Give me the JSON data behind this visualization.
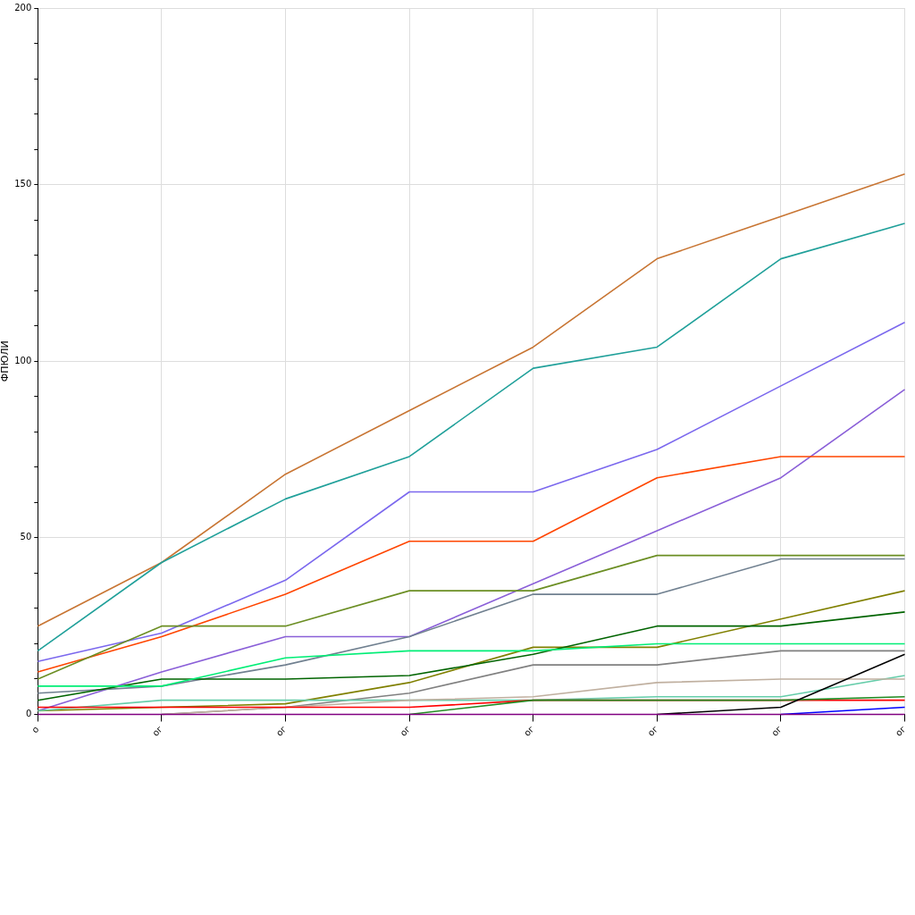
{
  "chart_data": {
    "type": "line",
    "ylabel": "ФПЮЛИ",
    "categories": [
      "о",
      "ог",
      "ог",
      "ог",
      "ог",
      "ог",
      "ог",
      "ог"
    ],
    "ylim": [
      0,
      200
    ],
    "yticks": [
      0,
      {
        "value": 10,
        "label": null
      },
      {
        "value": 20,
        "label": null
      },
      {
        "value": 30,
        "label": null
      },
      {
        "value": 40,
        "label": null
      },
      50,
      {
        "value": 60,
        "label": null
      },
      {
        "value": 70,
        "label": null
      },
      {
        "value": 80,
        "label": null
      },
      {
        "value": 90,
        "label": null
      },
      100,
      {
        "value": 110,
        "label": null
      },
      {
        "value": 120,
        "label": null
      },
      {
        "value": 130,
        "label": null
      },
      {
        "value": 140,
        "label": null
      },
      150,
      {
        "value": 160,
        "label": null
      },
      {
        "value": 170,
        "label": null
      },
      {
        "value": 180,
        "label": null
      },
      {
        "value": 190,
        "label": null
      },
      200
    ],
    "grid": true,
    "marker": "none",
    "line_style": "solid",
    "series": [
      {
        "color": "#c87533",
        "values": [
          25,
          43,
          68,
          86,
          104,
          129,
          141,
          153
        ]
      },
      {
        "color": "#20a09a",
        "values": [
          18,
          43,
          61,
          73,
          98,
          104,
          129,
          139
        ]
      },
      {
        "color": "#7b68ee",
        "values": [
          15,
          23,
          38,
          63,
          63,
          75,
          93,
          111
        ]
      },
      {
        "color": "#8a5fd8",
        "values": [
          1,
          12,
          22,
          22,
          37,
          52,
          67,
          92
        ]
      },
      {
        "color": "#ff4500",
        "values": [
          12,
          22,
          34,
          49,
          49,
          67,
          73,
          73
        ]
      },
      {
        "color": "#6b8e23",
        "values": [
          10,
          25,
          25,
          35,
          35,
          45,
          45,
          45
        ]
      },
      {
        "color": "#708090",
        "values": [
          6,
          8,
          14,
          22,
          34,
          34,
          44,
          44
        ]
      },
      {
        "color": "#808000",
        "values": [
          1,
          2,
          3,
          9,
          19,
          19,
          27,
          35
        ]
      },
      {
        "color": "#006400",
        "values": [
          4,
          10,
          10,
          11,
          17,
          25,
          25,
          29
        ]
      },
      {
        "color": "#00ee76",
        "values": [
          8,
          8,
          16,
          18,
          18,
          20,
          20,
          20
        ]
      },
      {
        "color": "#808080",
        "values": [
          null,
          0,
          2,
          6,
          14,
          14,
          18,
          18
        ]
      },
      {
        "color": "#66cdaa",
        "values": [
          1,
          4,
          4,
          4,
          4,
          5,
          5,
          11
        ]
      },
      {
        "color": "#c0b0a0",
        "values": [
          null,
          0,
          2,
          4,
          5,
          9,
          10,
          10
        ]
      },
      {
        "color": "#ff0000",
        "values": [
          2,
          2,
          2,
          2,
          4,
          4,
          4,
          4
        ]
      },
      {
        "color": "#228b22",
        "values": [
          null,
          null,
          null,
          0,
          4,
          4,
          4,
          5
        ]
      },
      {
        "color": "#000000",
        "values": [
          null,
          null,
          null,
          null,
          null,
          0,
          2,
          17
        ]
      },
      {
        "color": "#0000ff",
        "values": [
          null,
          null,
          null,
          null,
          null,
          null,
          0,
          2
        ]
      },
      {
        "color": "#800080",
        "values": [
          0,
          0,
          0,
          0,
          0,
          0,
          0,
          0
        ]
      }
    ]
  }
}
